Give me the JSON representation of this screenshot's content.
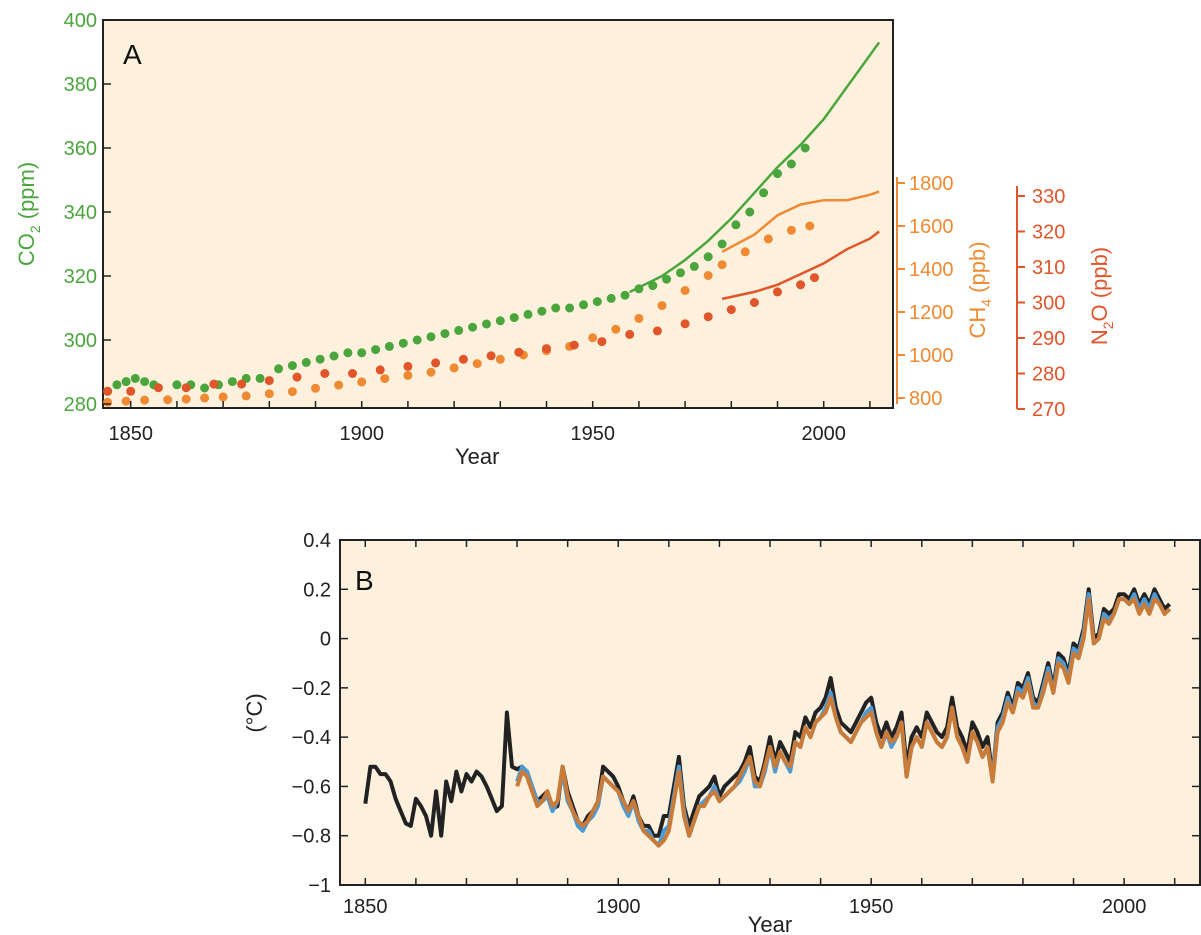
{
  "chart_data": [
    {
      "panel": "A",
      "type": "scatter",
      "xlabel": "Year",
      "xlim": [
        1844,
        2015
      ],
      "xticks": [
        1850,
        1900,
        1950,
        2000
      ],
      "axes": {
        "co2": {
          "label_main": "CO",
          "label_sub": "2",
          "label_tail": " (ppm)",
          "ylim": [
            280,
            400
          ],
          "ticks": [
            280,
            300,
            320,
            340,
            360,
            380,
            400
          ],
          "color": "#4aa63c"
        },
        "ch4": {
          "label_main": "CH",
          "label_sub": "4",
          "label_tail": " (ppb)",
          "ylim": [
            750,
            1800
          ],
          "ticks": [
            800,
            1000,
            1200,
            1400,
            1600,
            1800
          ],
          "color": "#f08a32"
        },
        "n2o": {
          "label_main": "N",
          "label_sub": "2",
          "label_tail": "O (ppb)",
          "ylim": [
            270,
            330
          ],
          "ticks": [
            270,
            280,
            290,
            300,
            310,
            320,
            330
          ],
          "color": "#e0552a"
        }
      },
      "series": [
        {
          "key": "co2",
          "points": [
            [
              1845,
              284
            ],
            [
              1847,
              286
            ],
            [
              1849,
              287
            ],
            [
              1851,
              288
            ],
            [
              1853,
              287
            ],
            [
              1855,
              286
            ],
            [
              1860,
              286
            ],
            [
              1863,
              286
            ],
            [
              1866,
              285
            ],
            [
              1869,
              286
            ],
            [
              1872,
              287
            ],
            [
              1875,
              288
            ],
            [
              1878,
              288
            ],
            [
              1882,
              291
            ],
            [
              1885,
              292
            ],
            [
              1888,
              293
            ],
            [
              1891,
              294
            ],
            [
              1894,
              295
            ],
            [
              1897,
              296
            ],
            [
              1900,
              296
            ],
            [
              1903,
              297
            ],
            [
              1906,
              298
            ],
            [
              1909,
              299
            ],
            [
              1912,
              300
            ],
            [
              1915,
              301
            ],
            [
              1918,
              302
            ],
            [
              1921,
              303
            ],
            [
              1924,
              304
            ],
            [
              1927,
              305
            ],
            [
              1930,
              306
            ],
            [
              1933,
              307
            ],
            [
              1936,
              308
            ],
            [
              1939,
              309
            ],
            [
              1942,
              310
            ],
            [
              1945,
              310
            ],
            [
              1948,
              311
            ],
            [
              1951,
              312
            ],
            [
              1954,
              313
            ],
            [
              1957,
              314
            ],
            [
              1960,
              316
            ],
            [
              1963,
              317
            ],
            [
              1966,
              319
            ],
            [
              1969,
              321
            ],
            [
              1972,
              323
            ],
            [
              1975,
              326
            ],
            [
              1978,
              330
            ],
            [
              1981,
              336
            ],
            [
              1984,
              340
            ],
            [
              1987,
              346
            ],
            [
              1990,
              352
            ],
            [
              1993,
              355
            ],
            [
              1996,
              360
            ]
          ],
          "line": [
            [
              1958,
              315
            ],
            [
              1965,
              320
            ],
            [
              1970,
              325
            ],
            [
              1975,
              331
            ],
            [
              1980,
              338
            ],
            [
              1985,
              346
            ],
            [
              1990,
              354
            ],
            [
              1995,
              361
            ],
            [
              2000,
              369
            ],
            [
              2005,
              379
            ],
            [
              2010,
              389
            ],
            [
              2012,
              393
            ]
          ]
        },
        {
          "key": "ch4",
          "points": [
            [
              1845,
              780
            ],
            [
              1849,
              785
            ],
            [
              1853,
              790
            ],
            [
              1858,
              792
            ],
            [
              1862,
              795
            ],
            [
              1866,
              800
            ],
            [
              1870,
              805
            ],
            [
              1875,
              810
            ],
            [
              1880,
              820
            ],
            [
              1885,
              830
            ],
            [
              1890,
              845
            ],
            [
              1895,
              860
            ],
            [
              1900,
              875
            ],
            [
              1905,
              890
            ],
            [
              1910,
              905
            ],
            [
              1915,
              920
            ],
            [
              1920,
              940
            ],
            [
              1925,
              960
            ],
            [
              1930,
              980
            ],
            [
              1935,
              1000
            ],
            [
              1940,
              1020
            ],
            [
              1945,
              1040
            ],
            [
              1950,
              1080
            ],
            [
              1955,
              1120
            ],
            [
              1960,
              1170
            ],
            [
              1965,
              1230
            ],
            [
              1970,
              1300
            ],
            [
              1975,
              1370
            ],
            [
              1978,
              1420
            ],
            [
              1983,
              1480
            ],
            [
              1988,
              1540
            ],
            [
              1993,
              1580
            ],
            [
              1997,
              1600
            ]
          ],
          "line": [
            [
              1978,
              1480
            ],
            [
              1985,
              1560
            ],
            [
              1990,
              1650
            ],
            [
              1995,
              1700
            ],
            [
              2000,
              1720
            ],
            [
              2005,
              1720
            ],
            [
              2010,
              1745
            ],
            [
              2012,
              1760
            ]
          ]
        },
        {
          "key": "n2o",
          "points": [
            [
              1845,
              275
            ],
            [
              1850,
              275
            ],
            [
              1856,
              276
            ],
            [
              1862,
              276
            ],
            [
              1868,
              277
            ],
            [
              1874,
              277
            ],
            [
              1880,
              278
            ],
            [
              1886,
              279
            ],
            [
              1892,
              280
            ],
            [
              1898,
              280
            ],
            [
              1904,
              281
            ],
            [
              1910,
              282
            ],
            [
              1916,
              283
            ],
            [
              1922,
              284
            ],
            [
              1928,
              285
            ],
            [
              1934,
              286
            ],
            [
              1940,
              287
            ],
            [
              1946,
              288
            ],
            [
              1952,
              289
            ],
            [
              1958,
              291
            ],
            [
              1964,
              292
            ],
            [
              1970,
              294
            ],
            [
              1975,
              296
            ],
            [
              1980,
              298
            ],
            [
              1985,
              300
            ],
            [
              1990,
              303
            ],
            [
              1995,
              305
            ],
            [
              1998,
              307
            ]
          ],
          "line": [
            [
              1978,
              301
            ],
            [
              1985,
              303
            ],
            [
              1990,
              305
            ],
            [
              1995,
              308
            ],
            [
              2000,
              311
            ],
            [
              2005,
              315
            ],
            [
              2010,
              318
            ],
            [
              2012,
              320
            ]
          ]
        }
      ]
    },
    {
      "panel": "B",
      "type": "line",
      "xlabel": "Year",
      "ylabel": "(°C)",
      "xlim": [
        1845,
        2015
      ],
      "ylim": [
        -1,
        0.4
      ],
      "xticks": [
        1850,
        1900,
        1950,
        2000
      ],
      "yticks": [
        -1,
        -0.8,
        -0.6,
        -0.4,
        -0.2,
        0,
        0.2,
        0.4
      ],
      "series": [
        {
          "color": "#222222",
          "x_start": 1850,
          "values": [
            -0.67,
            -0.52,
            -0.52,
            -0.55,
            -0.55,
            -0.58,
            -0.65,
            -0.7,
            -0.75,
            -0.76,
            -0.65,
            -0.68,
            -0.72,
            -0.8,
            -0.62,
            -0.8,
            -0.58,
            -0.66,
            -0.54,
            -0.62,
            -0.55,
            -0.58,
            -0.54,
            -0.56,
            -0.6,
            -0.65,
            -0.7,
            -0.68,
            -0.3,
            -0.52,
            -0.53,
            -0.52,
            -0.56,
            -0.62,
            -0.66,
            -0.64,
            -0.62,
            -0.69,
            -0.68,
            -0.52,
            -0.62,
            -0.68,
            -0.74,
            -0.76,
            -0.72,
            -0.7,
            -0.66,
            -0.52,
            -0.54,
            -0.56,
            -0.6,
            -0.66,
            -0.7,
            -0.64,
            -0.72,
            -0.76,
            -0.76,
            -0.8,
            -0.8,
            -0.72,
            -0.72,
            -0.6,
            -0.48,
            -0.68,
            -0.76,
            -0.7,
            -0.64,
            -0.62,
            -0.6,
            -0.56,
            -0.64,
            -0.6,
            -0.58,
            -0.56,
            -0.54,
            -0.5,
            -0.44,
            -0.56,
            -0.58,
            -0.5,
            -0.4,
            -0.5,
            -0.42,
            -0.46,
            -0.5,
            -0.38,
            -0.4,
            -0.32,
            -0.36,
            -0.3,
            -0.28,
            -0.24,
            -0.16,
            -0.28,
            -0.34,
            -0.36,
            -0.38,
            -0.34,
            -0.3,
            -0.26,
            -0.24,
            -0.34,
            -0.4,
            -0.34,
            -0.4,
            -0.36,
            -0.3,
            -0.52,
            -0.4,
            -0.36,
            -0.4,
            -0.3,
            -0.34,
            -0.38,
            -0.4,
            -0.36,
            -0.24,
            -0.36,
            -0.4,
            -0.46,
            -0.34,
            -0.38,
            -0.44,
            -0.4,
            -0.56,
            -0.34,
            -0.3,
            -0.22,
            -0.28,
            -0.18,
            -0.2,
            -0.14,
            -0.24,
            -0.26,
            -0.18,
            -0.1,
            -0.2,
            -0.06,
            -0.08,
            -0.14,
            -0.02,
            -0.04,
            0.04,
            0.2,
            0.0,
            0.02,
            0.12,
            0.1,
            0.12,
            0.18,
            0.18,
            0.16,
            0.2,
            0.14,
            0.18,
            0.14,
            0.2,
            0.16,
            0.12,
            0.14
          ]
        },
        {
          "color": "#4a9ad8",
          "x_start": 1880,
          "values": [
            -0.58,
            -0.52,
            -0.54,
            -0.6,
            -0.66,
            -0.66,
            -0.64,
            -0.7,
            -0.66,
            -0.54,
            -0.66,
            -0.7,
            -0.76,
            -0.78,
            -0.74,
            -0.72,
            -0.68,
            -0.56,
            -0.58,
            -0.6,
            -0.62,
            -0.68,
            -0.72,
            -0.66,
            -0.74,
            -0.78,
            -0.78,
            -0.82,
            -0.84,
            -0.78,
            -0.76,
            -0.64,
            -0.52,
            -0.7,
            -0.8,
            -0.74,
            -0.68,
            -0.66,
            -0.64,
            -0.6,
            -0.66,
            -0.64,
            -0.62,
            -0.6,
            -0.58,
            -0.54,
            -0.48,
            -0.6,
            -0.6,
            -0.54,
            -0.44,
            -0.54,
            -0.46,
            -0.5,
            -0.54,
            -0.42,
            -0.44,
            -0.36,
            -0.4,
            -0.34,
            -0.32,
            -0.28,
            -0.22,
            -0.32,
            -0.38,
            -0.4,
            -0.42,
            -0.38,
            -0.34,
            -0.3,
            -0.28,
            -0.38,
            -0.44,
            -0.38,
            -0.44,
            -0.4,
            -0.34,
            -0.56,
            -0.44,
            -0.4,
            -0.44,
            -0.34,
            -0.38,
            -0.42,
            -0.44,
            -0.4,
            -0.28,
            -0.4,
            -0.44,
            -0.5,
            -0.38,
            -0.42,
            -0.48,
            -0.44,
            -0.56,
            -0.36,
            -0.32,
            -0.24,
            -0.3,
            -0.2,
            -0.22,
            -0.16,
            -0.26,
            -0.28,
            -0.2,
            -0.12,
            -0.22,
            -0.08,
            -0.1,
            -0.16,
            -0.04,
            -0.06,
            0.02,
            0.18,
            -0.02,
            0.0,
            0.1,
            0.08,
            0.1,
            0.16,
            0.16,
            0.14,
            0.18,
            0.12,
            0.16,
            0.12,
            0.18,
            0.14,
            0.1,
            0.12
          ]
        },
        {
          "color": "#c97b3a",
          "x_start": 1880,
          "values": [
            -0.6,
            -0.54,
            -0.56,
            -0.62,
            -0.68,
            -0.66,
            -0.62,
            -0.68,
            -0.66,
            -0.52,
            -0.64,
            -0.7,
            -0.74,
            -0.76,
            -0.74,
            -0.7,
            -0.66,
            -0.56,
            -0.58,
            -0.6,
            -0.62,
            -0.66,
            -0.7,
            -0.66,
            -0.72,
            -0.78,
            -0.8,
            -0.82,
            -0.84,
            -0.82,
            -0.78,
            -0.66,
            -0.54,
            -0.72,
            -0.8,
            -0.74,
            -0.68,
            -0.68,
            -0.64,
            -0.62,
            -0.66,
            -0.64,
            -0.62,
            -0.6,
            -0.56,
            -0.52,
            -0.48,
            -0.58,
            -0.6,
            -0.52,
            -0.44,
            -0.52,
            -0.46,
            -0.5,
            -0.52,
            -0.42,
            -0.44,
            -0.36,
            -0.4,
            -0.34,
            -0.32,
            -0.3,
            -0.24,
            -0.32,
            -0.38,
            -0.4,
            -0.42,
            -0.38,
            -0.34,
            -0.32,
            -0.3,
            -0.38,
            -0.44,
            -0.38,
            -0.42,
            -0.4,
            -0.34,
            -0.56,
            -0.44,
            -0.4,
            -0.44,
            -0.34,
            -0.38,
            -0.42,
            -0.44,
            -0.4,
            -0.28,
            -0.4,
            -0.44,
            -0.5,
            -0.38,
            -0.42,
            -0.48,
            -0.44,
            -0.58,
            -0.38,
            -0.34,
            -0.26,
            -0.3,
            -0.22,
            -0.24,
            -0.18,
            -0.28,
            -0.28,
            -0.22,
            -0.14,
            -0.22,
            -0.1,
            -0.12,
            -0.18,
            -0.06,
            -0.08,
            0.0,
            0.16,
            -0.02,
            0.0,
            0.08,
            0.06,
            0.1,
            0.16,
            0.16,
            0.14,
            0.16,
            0.1,
            0.14,
            0.1,
            0.16,
            0.14,
            0.1,
            0.12
          ]
        }
      ]
    }
  ]
}
